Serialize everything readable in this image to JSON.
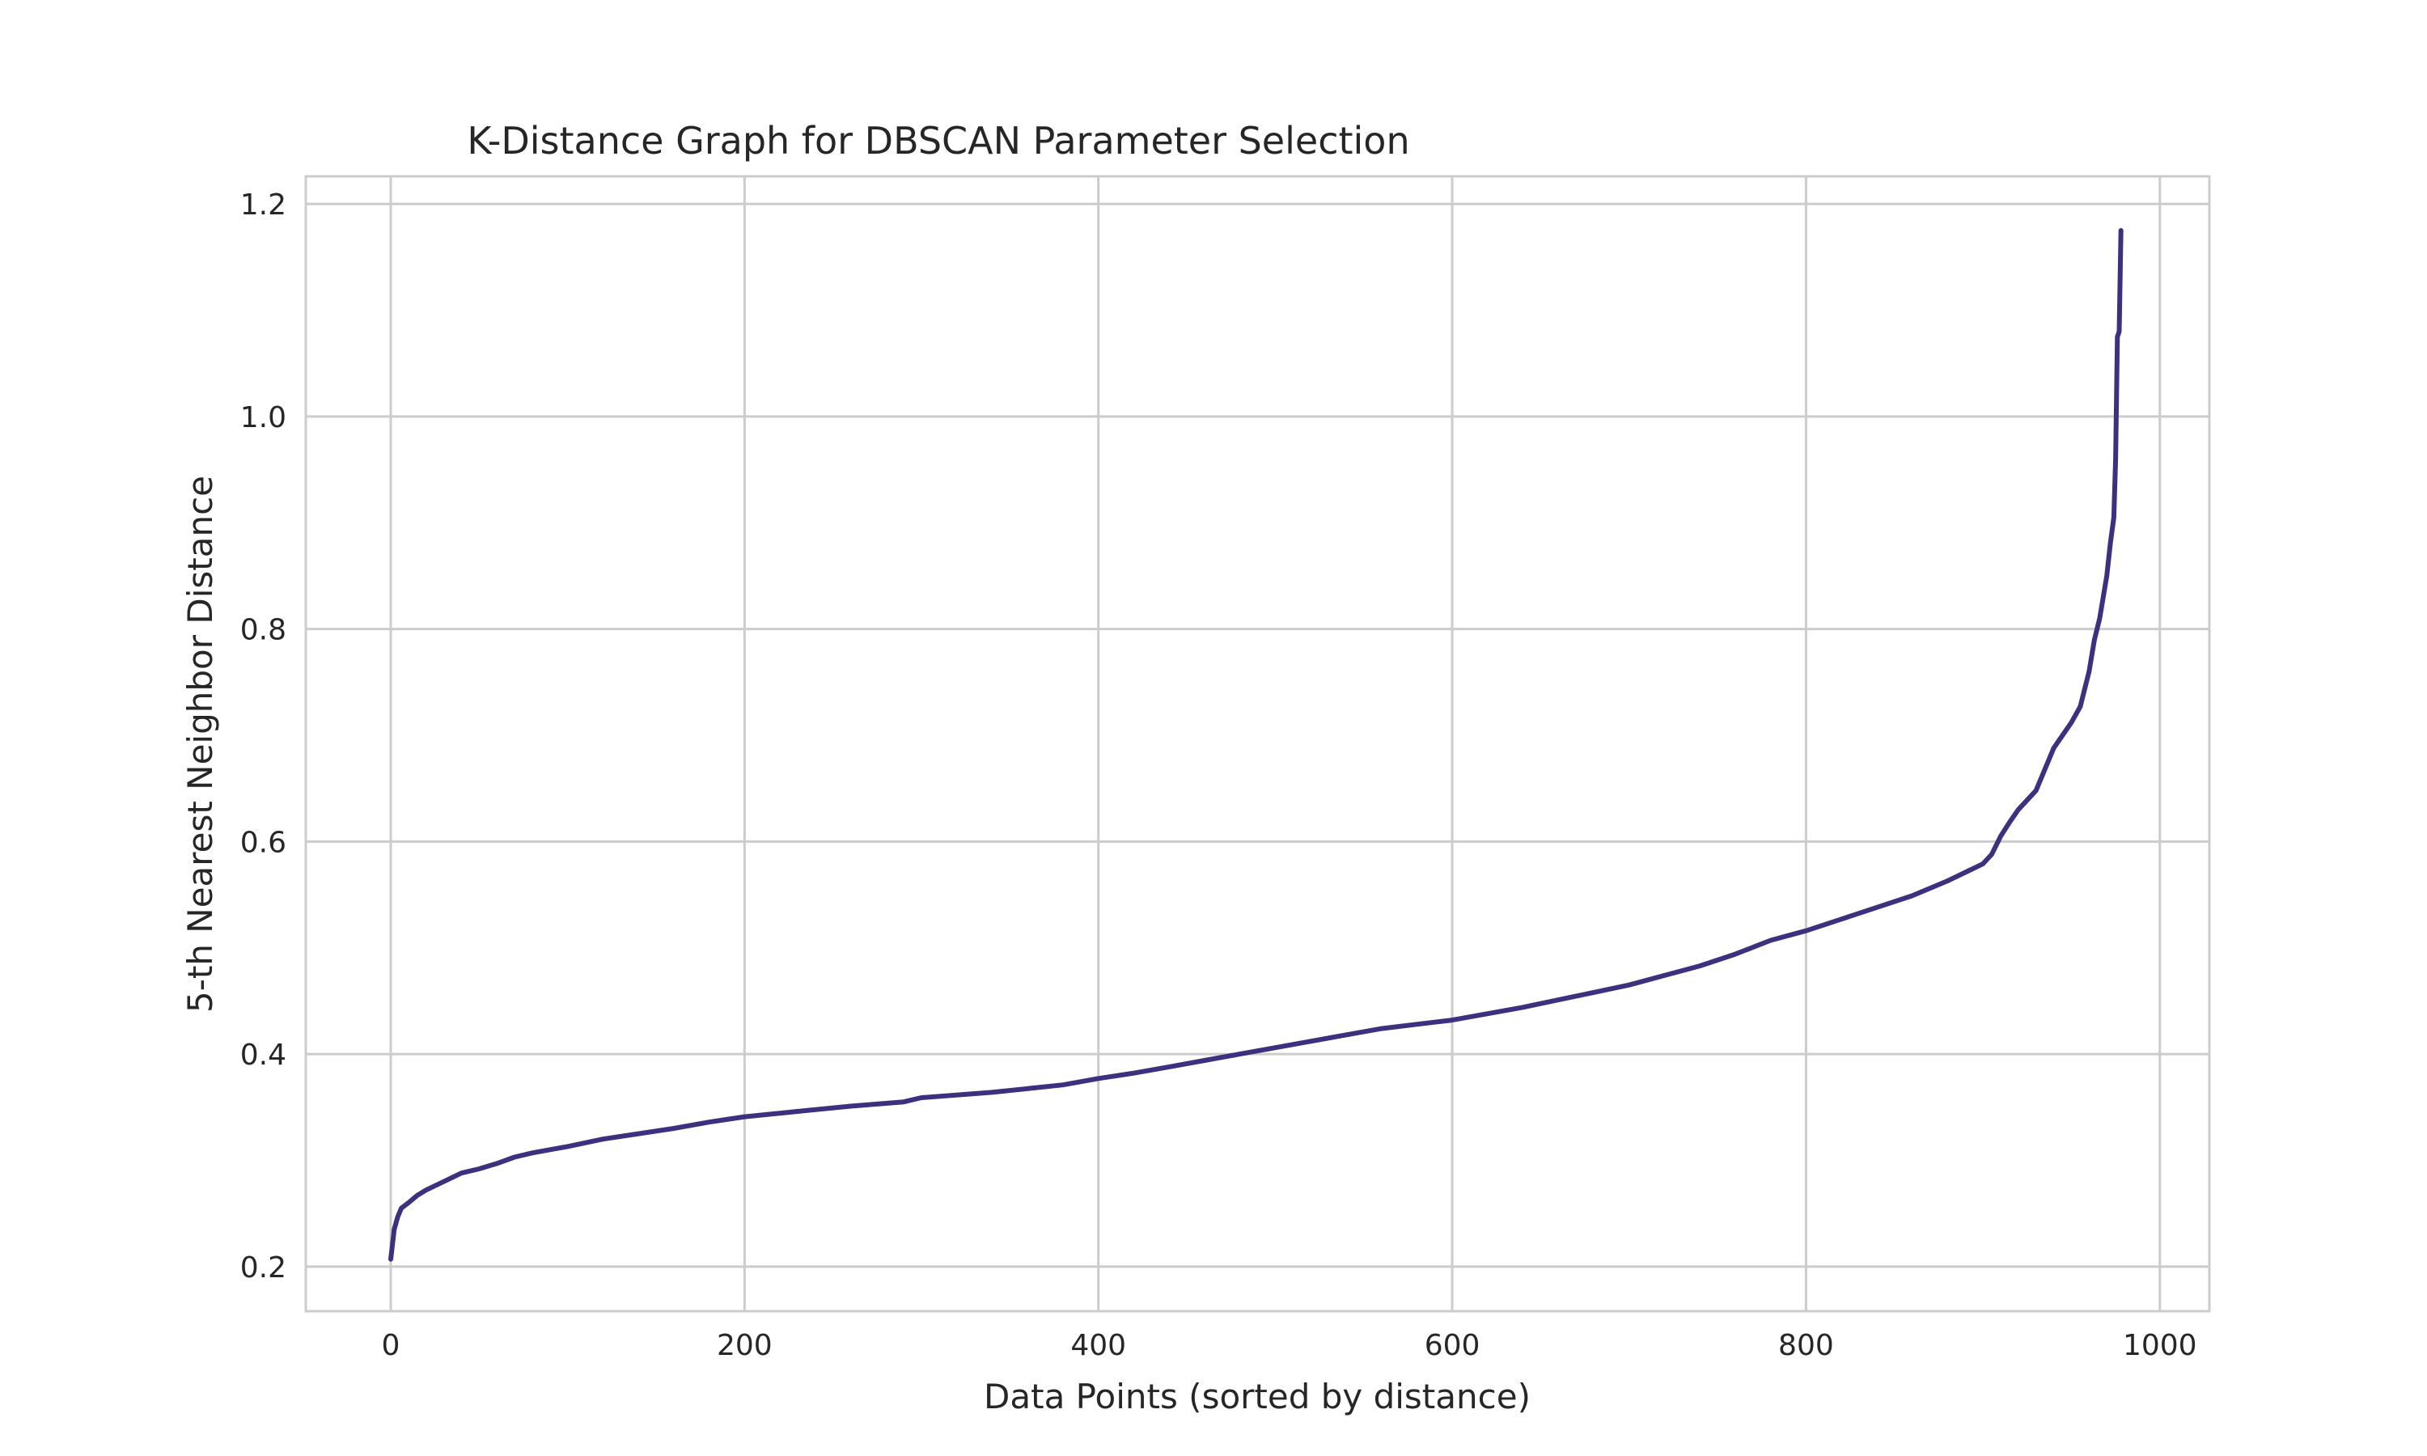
{
  "chart_data": {
    "type": "line",
    "title": "K-Distance Graph for DBSCAN Parameter Selection",
    "xlabel": "Data Points (sorted by distance)",
    "ylabel": "5-th Nearest Neighbor Distance",
    "xlim": [
      -48,
      1028
    ],
    "ylim": [
      0.158,
      1.226
    ],
    "xticks": [
      0,
      200,
      400,
      600,
      800,
      1000
    ],
    "xtick_labels": [
      "0",
      "200",
      "400",
      "600",
      "800",
      "1000"
    ],
    "yticks": [
      0.2,
      0.4,
      0.6,
      0.8,
      1.0,
      1.2
    ],
    "ytick_labels": [
      "0.2",
      "0.4",
      "0.6",
      "0.8",
      "1.0",
      "1.2"
    ],
    "grid": true,
    "series": [
      {
        "color": "#3f2f7f",
        "x": [
          0,
          2,
          4,
          6,
          10,
          15,
          20,
          30,
          40,
          50,
          60,
          70,
          80,
          90,
          100,
          120,
          140,
          160,
          180,
          200,
          230,
          260,
          290,
          300,
          340,
          380,
          400,
          420,
          440,
          460,
          480,
          500,
          520,
          540,
          560,
          580,
          600,
          620,
          640,
          660,
          680,
          700,
          720,
          740,
          760,
          780,
          800,
          820,
          840,
          860,
          880,
          890,
          900,
          905,
          910,
          915,
          920,
          930,
          940,
          945,
          950,
          955,
          960,
          963,
          966,
          970,
          972,
          974,
          975,
          976,
          977,
          978
        ],
        "y": [
          0.207,
          0.235,
          0.247,
          0.255,
          0.26,
          0.267,
          0.272,
          0.28,
          0.288,
          0.292,
          0.297,
          0.303,
          0.307,
          0.31,
          0.313,
          0.32,
          0.325,
          0.33,
          0.336,
          0.341,
          0.346,
          0.351,
          0.355,
          0.359,
          0.364,
          0.371,
          0.377,
          0.382,
          0.388,
          0.394,
          0.4,
          0.406,
          0.412,
          0.418,
          0.424,
          0.428,
          0.432,
          0.438,
          0.444,
          0.451,
          0.458,
          0.465,
          0.474,
          0.483,
          0.494,
          0.507,
          0.516,
          0.527,
          0.538,
          0.549,
          0.563,
          0.571,
          0.579,
          0.588,
          0.605,
          0.618,
          0.63,
          0.648,
          0.688,
          0.7,
          0.712,
          0.727,
          0.76,
          0.79,
          0.81,
          0.85,
          0.88,
          0.905,
          0.96,
          1.075,
          1.08,
          1.175
        ]
      }
    ]
  }
}
